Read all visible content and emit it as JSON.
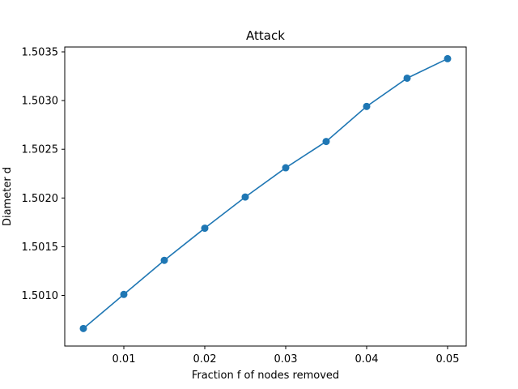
{
  "chart_data": {
    "type": "line",
    "title": "Attack",
    "xlabel": "Fraction f of nodes removed",
    "ylabel": "Diameter d",
    "xlim": [
      0.0027,
      0.0523
    ],
    "ylim": [
      1.50048,
      1.50355
    ],
    "xticks": [
      0.01,
      0.02,
      0.03,
      0.04,
      0.05
    ],
    "xtick_labels": [
      "0.01",
      "0.02",
      "0.03",
      "0.04",
      "0.05"
    ],
    "yticks": [
      1.501,
      1.5015,
      1.502,
      1.5025,
      1.503,
      1.5035
    ],
    "ytick_labels": [
      "1.5010",
      "1.5015",
      "1.5020",
      "1.5025",
      "1.5030",
      "1.5035"
    ],
    "grid": false,
    "legend": "none",
    "series": [
      {
        "color": "#1f77b4",
        "marker": "circle",
        "x": [
          0.005,
          0.01,
          0.015,
          0.02,
          0.025,
          0.03,
          0.035,
          0.04,
          0.045,
          0.05
        ],
        "y": [
          1.50066,
          1.50101,
          1.50136,
          1.50169,
          1.50201,
          1.50231,
          1.50258,
          1.50294,
          1.50323,
          1.50343
        ]
      }
    ]
  }
}
